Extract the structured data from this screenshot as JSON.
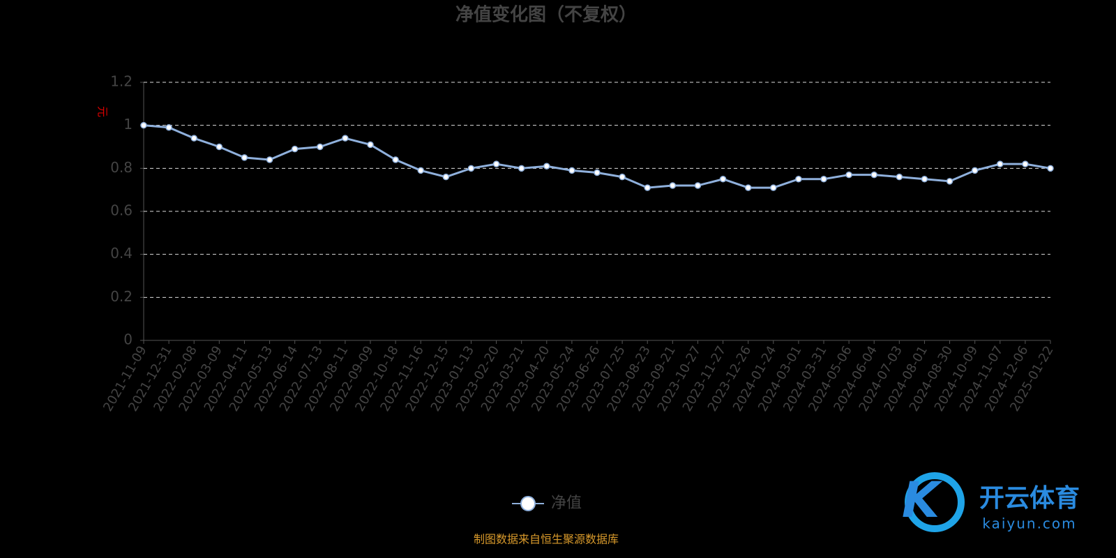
{
  "chart_data": {
    "type": "line",
    "title": "净值变化图（不复权）",
    "y_label": "元",
    "categories": [
      "2021-11-09",
      "2021-12-31",
      "2022-02-08",
      "2022-03-09",
      "2022-04-11",
      "2022-05-13",
      "2022-06-14",
      "2022-07-13",
      "2022-08-11",
      "2022-09-09",
      "2022-10-18",
      "2022-11-16",
      "2022-12-15",
      "2023-01-13",
      "2023-02-20",
      "2023-03-21",
      "2023-04-20",
      "2023-05-24",
      "2023-06-26",
      "2023-07-25",
      "2023-08-23",
      "2023-09-21",
      "2023-10-27",
      "2023-11-27",
      "2023-12-26",
      "2024-01-24",
      "2024-03-01",
      "2024-03-31",
      "2024-05-06",
      "2024-06-04",
      "2024-07-03",
      "2024-08-01",
      "2024-08-30",
      "2024-10-09",
      "2024-11-07",
      "2024-12-06",
      "2025-01-22"
    ],
    "series": [
      {
        "name": "净值",
        "color": "#8fb0dc",
        "values": [
          1.0,
          0.99,
          0.94,
          0.9,
          0.85,
          0.84,
          0.89,
          0.9,
          0.94,
          0.91,
          0.84,
          0.79,
          0.76,
          0.8,
          0.82,
          0.8,
          0.81,
          0.79,
          0.78,
          0.76,
          0.71,
          0.72,
          0.72,
          0.75,
          0.71,
          0.71,
          0.75,
          0.75,
          0.77,
          0.77,
          0.76,
          0.75,
          0.74,
          0.79,
          0.82,
          0.82,
          0.8
        ]
      }
    ],
    "ylim": [
      0,
      1.2
    ],
    "yticks": [
      0,
      0.2,
      0.4,
      0.6,
      0.8,
      1,
      1.2
    ],
    "grid": true,
    "source": "制图数据来自恒生聚源数据库",
    "watermark": {
      "brand": "开云体育",
      "url": "kaiyun.com"
    }
  }
}
